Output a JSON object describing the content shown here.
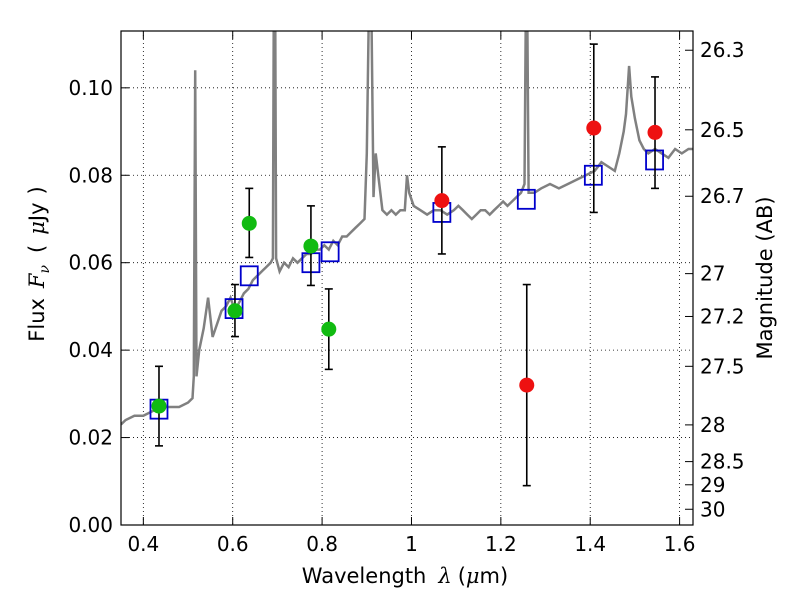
{
  "chart_data": {
    "type": "scatter",
    "xlabel": {
      "prefix": "Wavelength",
      "symbol": "λ",
      "unit_open": "(",
      "unit_mu": "μ",
      "unit_rest": "m)"
    },
    "ylabel": {
      "prefix": "Flux",
      "symbol": "F",
      "sub": "ν",
      "unit_open": "(",
      "unit_mu": "μ",
      "unit_rest": "Jy",
      "unit_close": ")"
    },
    "y2label": "Magnitude (AB)",
    "xlim": [
      0.35,
      1.63
    ],
    "ylim": [
      0.0,
      0.113
    ],
    "grid": true,
    "xticks": [
      {
        "value": 0.4,
        "label": "0.4"
      },
      {
        "value": 0.6,
        "label": "0.6"
      },
      {
        "value": 0.8,
        "label": "0.8"
      },
      {
        "value": 1.0,
        "label": "1"
      },
      {
        "value": 1.2,
        "label": "1.2"
      },
      {
        "value": 1.4,
        "label": "1.4"
      },
      {
        "value": 1.6,
        "label": "1.6"
      }
    ],
    "yticks": [
      {
        "value": 0.0,
        "label": "0.00"
      },
      {
        "value": 0.02,
        "label": "0.02"
      },
      {
        "value": 0.04,
        "label": "0.04"
      },
      {
        "value": 0.06,
        "label": "0.06"
      },
      {
        "value": 0.08,
        "label": "0.08"
      },
      {
        "value": 0.1,
        "label": "0.10"
      }
    ],
    "y2ticks": [
      {
        "flux": 0.1086,
        "label": "26.3"
      },
      {
        "flux": 0.0904,
        "label": "26.5"
      },
      {
        "flux": 0.0752,
        "label": "26.7"
      },
      {
        "flux": 0.0575,
        "label": "27"
      },
      {
        "flux": 0.0477,
        "label": "27.2"
      },
      {
        "flux": 0.0363,
        "label": "27.5"
      },
      {
        "flux": 0.0229,
        "label": "28"
      },
      {
        "flux": 0.0145,
        "label": "28.5"
      },
      {
        "flux": 0.0092,
        "label": "29"
      },
      {
        "flux": 0.0036,
        "label": "30"
      }
    ],
    "spectrum": {
      "color": "#808080",
      "points": [
        [
          0.35,
          0.023
        ],
        [
          0.36,
          0.024
        ],
        [
          0.38,
          0.025
        ],
        [
          0.4,
          0.025
        ],
        [
          0.42,
          0.026
        ],
        [
          0.44,
          0.027
        ],
        [
          0.46,
          0.027
        ],
        [
          0.48,
          0.027
        ],
        [
          0.5,
          0.028
        ],
        [
          0.51,
          0.029
        ],
        [
          0.513,
          0.034
        ],
        [
          0.516,
          0.104
        ],
        [
          0.519,
          0.034
        ],
        [
          0.525,
          0.04
        ],
        [
          0.535,
          0.045
        ],
        [
          0.545,
          0.052
        ],
        [
          0.555,
          0.043
        ],
        [
          0.565,
          0.046
        ],
        [
          0.575,
          0.049
        ],
        [
          0.585,
          0.05
        ],
        [
          0.595,
          0.052
        ],
        [
          0.605,
          0.049
        ],
        [
          0.615,
          0.051
        ],
        [
          0.625,
          0.053
        ],
        [
          0.635,
          0.054
        ],
        [
          0.645,
          0.056
        ],
        [
          0.655,
          0.057
        ],
        [
          0.665,
          0.058
        ],
        [
          0.675,
          0.059
        ],
        [
          0.685,
          0.06
        ],
        [
          0.69,
          0.061
        ],
        [
          0.692,
          0.12
        ],
        [
          0.695,
          0.12
        ],
        [
          0.697,
          0.061
        ],
        [
          0.705,
          0.058
        ],
        [
          0.715,
          0.06
        ],
        [
          0.725,
          0.059
        ],
        [
          0.735,
          0.061
        ],
        [
          0.745,
          0.06
        ],
        [
          0.755,
          0.061
        ],
        [
          0.765,
          0.062
        ],
        [
          0.775,
          0.062
        ],
        [
          0.785,
          0.063
        ],
        [
          0.795,
          0.063
        ],
        [
          0.805,
          0.064
        ],
        [
          0.815,
          0.063
        ],
        [
          0.825,
          0.065
        ],
        [
          0.835,
          0.064
        ],
        [
          0.845,
          0.066
        ],
        [
          0.855,
          0.066
        ],
        [
          0.865,
          0.067
        ],
        [
          0.875,
          0.068
        ],
        [
          0.885,
          0.069
        ],
        [
          0.895,
          0.07
        ],
        [
          0.9,
          0.085
        ],
        [
          0.905,
          0.12
        ],
        [
          0.91,
          0.12
        ],
        [
          0.915,
          0.075
        ],
        [
          0.92,
          0.085
        ],
        [
          0.928,
          0.078
        ],
        [
          0.935,
          0.072
        ],
        [
          0.945,
          0.071
        ],
        [
          0.955,
          0.072
        ],
        [
          0.965,
          0.071
        ],
        [
          0.975,
          0.072
        ],
        [
          0.985,
          0.072
        ],
        [
          0.99,
          0.08
        ],
        [
          0.995,
          0.076
        ],
        [
          1.005,
          0.073
        ],
        [
          1.02,
          0.072
        ],
        [
          1.035,
          0.071
        ],
        [
          1.05,
          0.072
        ],
        [
          1.065,
          0.072
        ],
        [
          1.08,
          0.071
        ],
        [
          1.095,
          0.072
        ],
        [
          1.105,
          0.073
        ],
        [
          1.115,
          0.072
        ],
        [
          1.125,
          0.071
        ],
        [
          1.135,
          0.07
        ],
        [
          1.145,
          0.071
        ],
        [
          1.155,
          0.072
        ],
        [
          1.165,
          0.072
        ],
        [
          1.175,
          0.071
        ],
        [
          1.185,
          0.072
        ],
        [
          1.195,
          0.073
        ],
        [
          1.205,
          0.074
        ],
        [
          1.215,
          0.073
        ],
        [
          1.225,
          0.074
        ],
        [
          1.235,
          0.075
        ],
        [
          1.245,
          0.076
        ],
        [
          1.253,
          0.078
        ],
        [
          1.256,
          0.12
        ],
        [
          1.259,
          0.12
        ],
        [
          1.262,
          0.076
        ],
        [
          1.275,
          0.076
        ],
        [
          1.29,
          0.077
        ],
        [
          1.31,
          0.078
        ],
        [
          1.33,
          0.077
        ],
        [
          1.35,
          0.078
        ],
        [
          1.37,
          0.079
        ],
        [
          1.39,
          0.08
        ],
        [
          1.41,
          0.081
        ],
        [
          1.425,
          0.083
        ],
        [
          1.44,
          0.082
        ],
        [
          1.455,
          0.081
        ],
        [
          1.465,
          0.085
        ],
        [
          1.475,
          0.09
        ],
        [
          1.48,
          0.094
        ],
        [
          1.487,
          0.105
        ],
        [
          1.492,
          0.098
        ],
        [
          1.5,
          0.093
        ],
        [
          1.51,
          0.088
        ],
        [
          1.52,
          0.086
        ],
        [
          1.53,
          0.085
        ],
        [
          1.545,
          0.086
        ],
        [
          1.56,
          0.085
        ],
        [
          1.575,
          0.084
        ],
        [
          1.59,
          0.086
        ],
        [
          1.605,
          0.085
        ],
        [
          1.62,
          0.086
        ],
        [
          1.63,
          0.086
        ]
      ]
    },
    "model_points": {
      "color": "#0000cc",
      "points": [
        [
          0.435,
          0.0265
        ],
        [
          0.603,
          0.0495
        ],
        [
          0.637,
          0.057
        ],
        [
          0.775,
          0.06
        ],
        [
          0.818,
          0.0625
        ],
        [
          1.068,
          0.0715
        ],
        [
          1.257,
          0.0745
        ],
        [
          1.407,
          0.08
        ],
        [
          1.544,
          0.0835
        ]
      ]
    },
    "observed_optical": {
      "color": "#11bb11",
      "points": [
        {
          "x": 0.435,
          "y": 0.0272,
          "lo": 0.0181,
          "hi": 0.0363
        },
        {
          "x": 0.605,
          "y": 0.049,
          "lo": 0.0431,
          "hi": 0.055
        },
        {
          "x": 0.637,
          "y": 0.069,
          "lo": 0.0612,
          "hi": 0.077
        },
        {
          "x": 0.775,
          "y": 0.0638,
          "lo": 0.0548,
          "hi": 0.073
        },
        {
          "x": 0.815,
          "y": 0.0448,
          "lo": 0.0356,
          "hi": 0.054
        }
      ]
    },
    "observed_nir": {
      "color": "#ee1111",
      "points": [
        {
          "x": 1.068,
          "y": 0.0742,
          "lo": 0.062,
          "hi": 0.0865
        },
        {
          "x": 1.258,
          "y": 0.032,
          "lo": 0.009,
          "hi": 0.055
        },
        {
          "x": 1.408,
          "y": 0.0908,
          "lo": 0.0715,
          "hi": 0.11
        },
        {
          "x": 1.545,
          "y": 0.0898,
          "lo": 0.077,
          "hi": 0.1025
        }
      ]
    }
  }
}
